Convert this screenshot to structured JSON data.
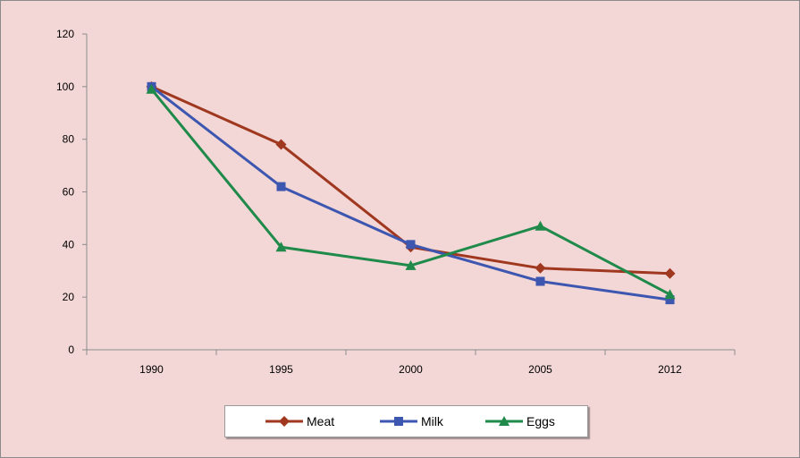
{
  "chart_data": {
    "type": "line",
    "title": "",
    "xlabel": "",
    "ylabel": "",
    "categories": [
      "1990",
      "1995",
      "2000",
      "2005",
      "2012"
    ],
    "ylim": [
      0,
      120
    ],
    "yticks": [
      0,
      20,
      40,
      60,
      80,
      100,
      120
    ],
    "grid": false,
    "legend_position": "bottom",
    "series": [
      {
        "name": "Meat",
        "values": [
          100,
          78,
          39,
          31,
          29
        ],
        "color": "#a0371f",
        "marker": "diamond"
      },
      {
        "name": "Milk",
        "values": [
          100,
          62,
          40,
          26,
          19
        ],
        "color": "#3d56b0",
        "marker": "square"
      },
      {
        "name": "Eggs",
        "values": [
          99,
          39,
          32,
          47,
          21
        ],
        "color": "#1f8a4a",
        "marker": "triangle"
      }
    ]
  },
  "style": {
    "background": "#f2d7d6",
    "axis_color": "#8c8c8c"
  }
}
